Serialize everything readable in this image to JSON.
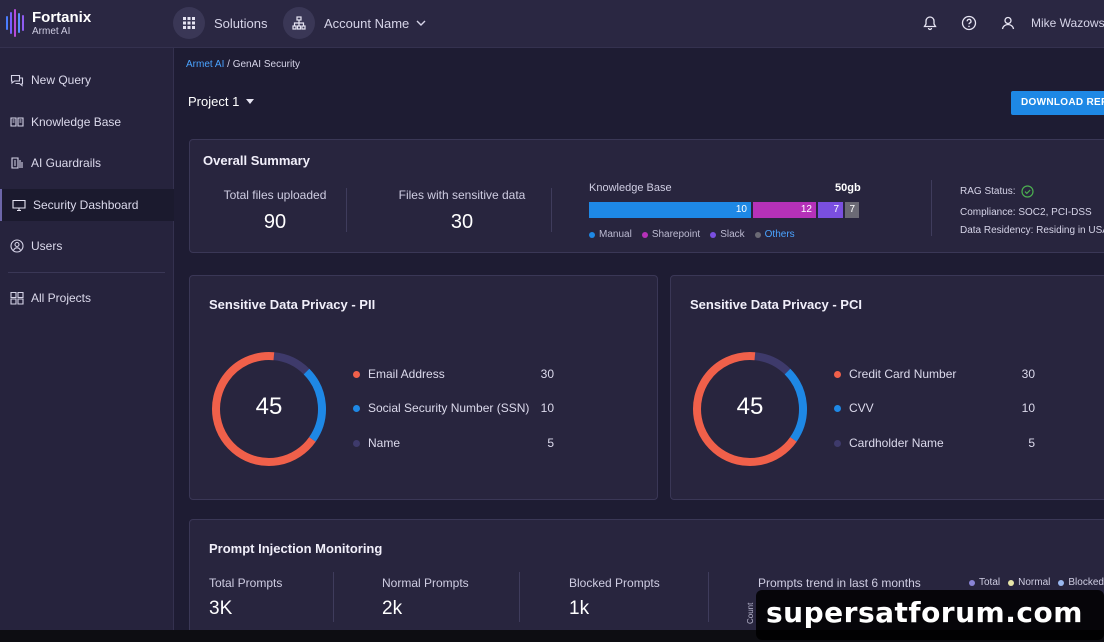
{
  "brand": {
    "name": "Fortanix",
    "sub": "Armet AI"
  },
  "topbar": {
    "solutions_label": "Solutions",
    "account_label": "Account Name",
    "user_name": "Mike Wazows"
  },
  "sidebar": {
    "items": [
      {
        "label": "New Query",
        "icon": "chat-icon"
      },
      {
        "label": "Knowledge Base",
        "icon": "book-icon"
      },
      {
        "label": "AI Guardrails",
        "icon": "guardrail-icon"
      },
      {
        "label": "Security Dashboard",
        "icon": "monitor-icon"
      },
      {
        "label": "Users",
        "icon": "user-icon"
      },
      {
        "label": "All Projects",
        "icon": "grid-icon"
      }
    ],
    "active_index": 3
  },
  "breadcrumb": {
    "parent": "Armet AI",
    "separator": "/",
    "current": "GenAI Security"
  },
  "project": {
    "selected": "Project 1"
  },
  "download_label": "DOWNLOAD REP",
  "overall": {
    "title": "Overall Summary",
    "total_files_label": "Total files uploaded",
    "total_files_value": "90",
    "sensitive_label": "Files with sensitive data",
    "sensitive_value": "30",
    "kb": {
      "label": "Knowledge Base",
      "size": "50gb",
      "segments": [
        {
          "name": "Manual",
          "value": 10,
          "color": "#1e88e5"
        },
        {
          "name": "Sharepoint",
          "value": 12,
          "color": "#b531b8"
        },
        {
          "name": "Slack",
          "value": 7,
          "color": "#7a4fe0"
        },
        {
          "name": "Others",
          "value": 7,
          "color": "#6b6a75"
        }
      ],
      "others_color": "#4aa3ff"
    },
    "rag_status": "RAG Status:",
    "compliance": "Compliance: SOC2, PCI-DSS",
    "residency": "Data Residency: Residing in USA"
  },
  "pii": {
    "title": "Sensitive Data Privacy - PII",
    "total": "45",
    "items": [
      {
        "label": "Email Address",
        "value": "30",
        "color": "#f0604a"
      },
      {
        "label": "Social Security Number (SSN)",
        "value": "10",
        "color": "#1e88e5"
      },
      {
        "label": "Name",
        "value": "5",
        "color": "#3e3a6b"
      }
    ]
  },
  "pci": {
    "title": "Sensitive Data Privacy - PCI",
    "total": "45",
    "items": [
      {
        "label": "Credit Card Number",
        "value": "30",
        "color": "#f0604a"
      },
      {
        "label": "CVV",
        "value": "10",
        "color": "#1e88e5"
      },
      {
        "label": "Cardholder Name",
        "value": "5",
        "color": "#3e3a6b"
      }
    ]
  },
  "prompt": {
    "title": "Prompt Injection Monitoring",
    "total_label": "Total Prompts",
    "total_value": "3K",
    "normal_label": "Normal Prompts",
    "normal_value": "2k",
    "blocked_label": "Blocked Prompts",
    "blocked_value": "1k",
    "trend_label": "Prompts trend in last 6 months",
    "trend_legend": [
      {
        "name": "Total",
        "color": "#8a84d6"
      },
      {
        "name": "Normal",
        "color": "#e8e6a8"
      },
      {
        "name": "Blocked",
        "color": "#9ab8f0"
      }
    ],
    "count_label": "Count"
  },
  "watermark": "supersatforum.com"
}
